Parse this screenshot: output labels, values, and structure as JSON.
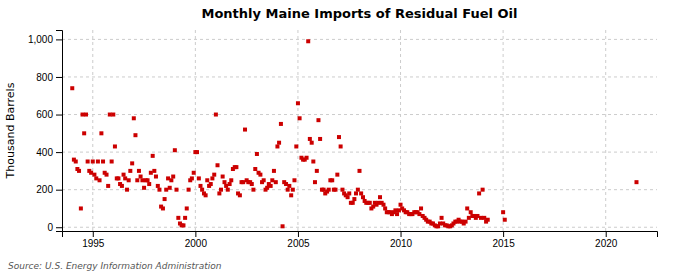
{
  "chart_data": {
    "type": "scatter",
    "title": "Monthly Maine Imports of Residual Fuel Oil",
    "ylabel": "Thousand Barrels",
    "annotations": [
      "Source: U.S. Energy Information Administration"
    ],
    "color": "#cc0000",
    "marker": "square",
    "grid": true,
    "xlim": [
      1993.5,
      2022.5
    ],
    "ylim": [
      -20,
      1050
    ],
    "xticks": [
      1995,
      2000,
      2005,
      2010,
      2015,
      2020
    ],
    "yticks": [
      0,
      200,
      400,
      600,
      800,
      {
        "value": 1000,
        "label": "1,000"
      }
    ],
    "x": [
      1994.0,
      1994.08,
      1994.17,
      1994.25,
      1994.33,
      1994.42,
      1994.5,
      1994.58,
      1994.67,
      1994.75,
      1994.83,
      1994.92,
      1995.0,
      1995.08,
      1995.17,
      1995.25,
      1995.33,
      1995.42,
      1995.5,
      1995.58,
      1995.67,
      1995.75,
      1995.83,
      1995.92,
      1996.0,
      1996.08,
      1996.17,
      1996.25,
      1996.33,
      1996.42,
      1996.5,
      1996.58,
      1996.67,
      1996.75,
      1996.83,
      1996.92,
      1997.0,
      1997.08,
      1997.17,
      1997.25,
      1997.33,
      1997.42,
      1997.5,
      1997.58,
      1997.67,
      1997.75,
      1997.83,
      1997.92,
      1998.0,
      1998.08,
      1998.17,
      1998.25,
      1998.33,
      1998.42,
      1998.5,
      1998.58,
      1998.67,
      1998.75,
      1998.83,
      1998.92,
      1999.0,
      1999.08,
      1999.17,
      1999.25,
      1999.33,
      1999.42,
      1999.5,
      1999.58,
      1999.67,
      1999.75,
      1999.83,
      1999.92,
      2000.0,
      2000.08,
      2000.17,
      2000.25,
      2000.33,
      2000.42,
      2000.5,
      2000.58,
      2000.67,
      2000.75,
      2000.83,
      2000.92,
      2001.0,
      2001.08,
      2001.17,
      2001.25,
      2001.33,
      2001.42,
      2001.5,
      2001.58,
      2001.67,
      2001.75,
      2001.83,
      2001.92,
      2002.0,
      2002.08,
      2002.17,
      2002.25,
      2002.33,
      2002.42,
      2002.5,
      2002.58,
      2002.67,
      2002.75,
      2002.83,
      2002.92,
      2003.0,
      2003.08,
      2003.17,
      2003.25,
      2003.33,
      2003.42,
      2003.5,
      2003.58,
      2003.67,
      2003.75,
      2003.83,
      2003.92,
      2004.0,
      2004.08,
      2004.17,
      2004.25,
      2004.33,
      2004.42,
      2004.5,
      2004.58,
      2004.67,
      2004.75,
      2004.83,
      2004.92,
      2005.0,
      2005.08,
      2005.17,
      2005.25,
      2005.33,
      2005.42,
      2005.5,
      2005.58,
      2005.67,
      2005.75,
      2005.83,
      2005.92,
      2006.0,
      2006.08,
      2006.17,
      2006.25,
      2006.33,
      2006.42,
      2006.5,
      2006.58,
      2006.67,
      2006.75,
      2006.83,
      2006.92,
      2007.0,
      2007.08,
      2007.17,
      2007.25,
      2007.33,
      2007.42,
      2007.5,
      2007.58,
      2007.67,
      2007.75,
      2007.83,
      2007.92,
      2008.0,
      2008.08,
      2008.17,
      2008.25,
      2008.33,
      2008.42,
      2008.5,
      2008.58,
      2008.67,
      2008.75,
      2008.83,
      2008.92,
      2009.0,
      2009.08,
      2009.17,
      2009.25,
      2009.33,
      2009.42,
      2009.5,
      2009.58,
      2009.67,
      2009.75,
      2009.83,
      2009.92,
      2010.0,
      2010.08,
      2010.17,
      2010.25,
      2010.33,
      2010.42,
      2010.5,
      2010.58,
      2010.67,
      2010.75,
      2010.83,
      2010.92,
      2011.0,
      2011.08,
      2011.17,
      2011.25,
      2011.33,
      2011.42,
      2011.5,
      2011.58,
      2011.67,
      2011.75,
      2011.83,
      2011.92,
      2012.0,
      2012.08,
      2012.17,
      2012.25,
      2012.33,
      2012.42,
      2012.5,
      2012.58,
      2012.67,
      2012.75,
      2012.83,
      2012.92,
      2013.0,
      2013.08,
      2013.17,
      2013.25,
      2013.33,
      2013.42,
      2013.5,
      2013.58,
      2013.67,
      2013.75,
      2013.83,
      2013.92,
      2014.0,
      2014.08,
      2014.17,
      2014.25,
      2015.0,
      2015.08,
      2021.5
    ],
    "values": [
      740,
      360,
      350,
      310,
      300,
      100,
      600,
      500,
      600,
      350,
      300,
      290,
      350,
      280,
      260,
      350,
      250,
      500,
      350,
      290,
      280,
      220,
      600,
      350,
      600,
      430,
      260,
      260,
      230,
      220,
      280,
      260,
      200,
      250,
      300,
      340,
      580,
      490,
      250,
      300,
      270,
      250,
      210,
      250,
      250,
      230,
      290,
      380,
      300,
      270,
      220,
      200,
      110,
      100,
      150,
      200,
      260,
      210,
      250,
      270,
      410,
      200,
      50,
      20,
      10,
      10,
      50,
      100,
      200,
      250,
      260,
      290,
      400,
      400,
      260,
      220,
      200,
      180,
      170,
      250,
      220,
      230,
      260,
      280,
      600,
      330,
      180,
      200,
      270,
      240,
      220,
      200,
      230,
      250,
      310,
      320,
      320,
      180,
      170,
      240,
      240,
      520,
      250,
      240,
      240,
      230,
      200,
      310,
      390,
      290,
      280,
      240,
      250,
      200,
      210,
      230,
      220,
      250,
      300,
      240,
      430,
      450,
      550,
      5,
      240,
      230,
      200,
      220,
      170,
      200,
      250,
      430,
      660,
      580,
      370,
      360,
      360,
      370,
      990,
      470,
      450,
      350,
      240,
      300,
      570,
      470,
      200,
      200,
      180,
      190,
      200,
      250,
      250,
      200,
      200,
      280,
      480,
      430,
      200,
      180,
      170,
      160,
      180,
      130,
      130,
      150,
      180,
      200,
      300,
      180,
      160,
      140,
      130,
      130,
      130,
      100,
      110,
      130,
      120,
      130,
      160,
      130,
      120,
      100,
      80,
      80,
      80,
      70,
      80,
      90,
      70,
      90,
      120,
      100,
      90,
      80,
      80,
      70,
      70,
      70,
      80,
      80,
      80,
      70,
      100,
      60,
      50,
      40,
      30,
      30,
      20,
      20,
      10,
      5,
      5,
      20,
      50,
      20,
      10,
      10,
      5,
      5,
      10,
      20,
      30,
      30,
      40,
      30,
      30,
      20,
      30,
      100,
      50,
      80,
      60,
      60,
      50,
      60,
      180,
      50,
      200,
      50,
      30,
      40,
      80,
      40,
      240
    ]
  }
}
